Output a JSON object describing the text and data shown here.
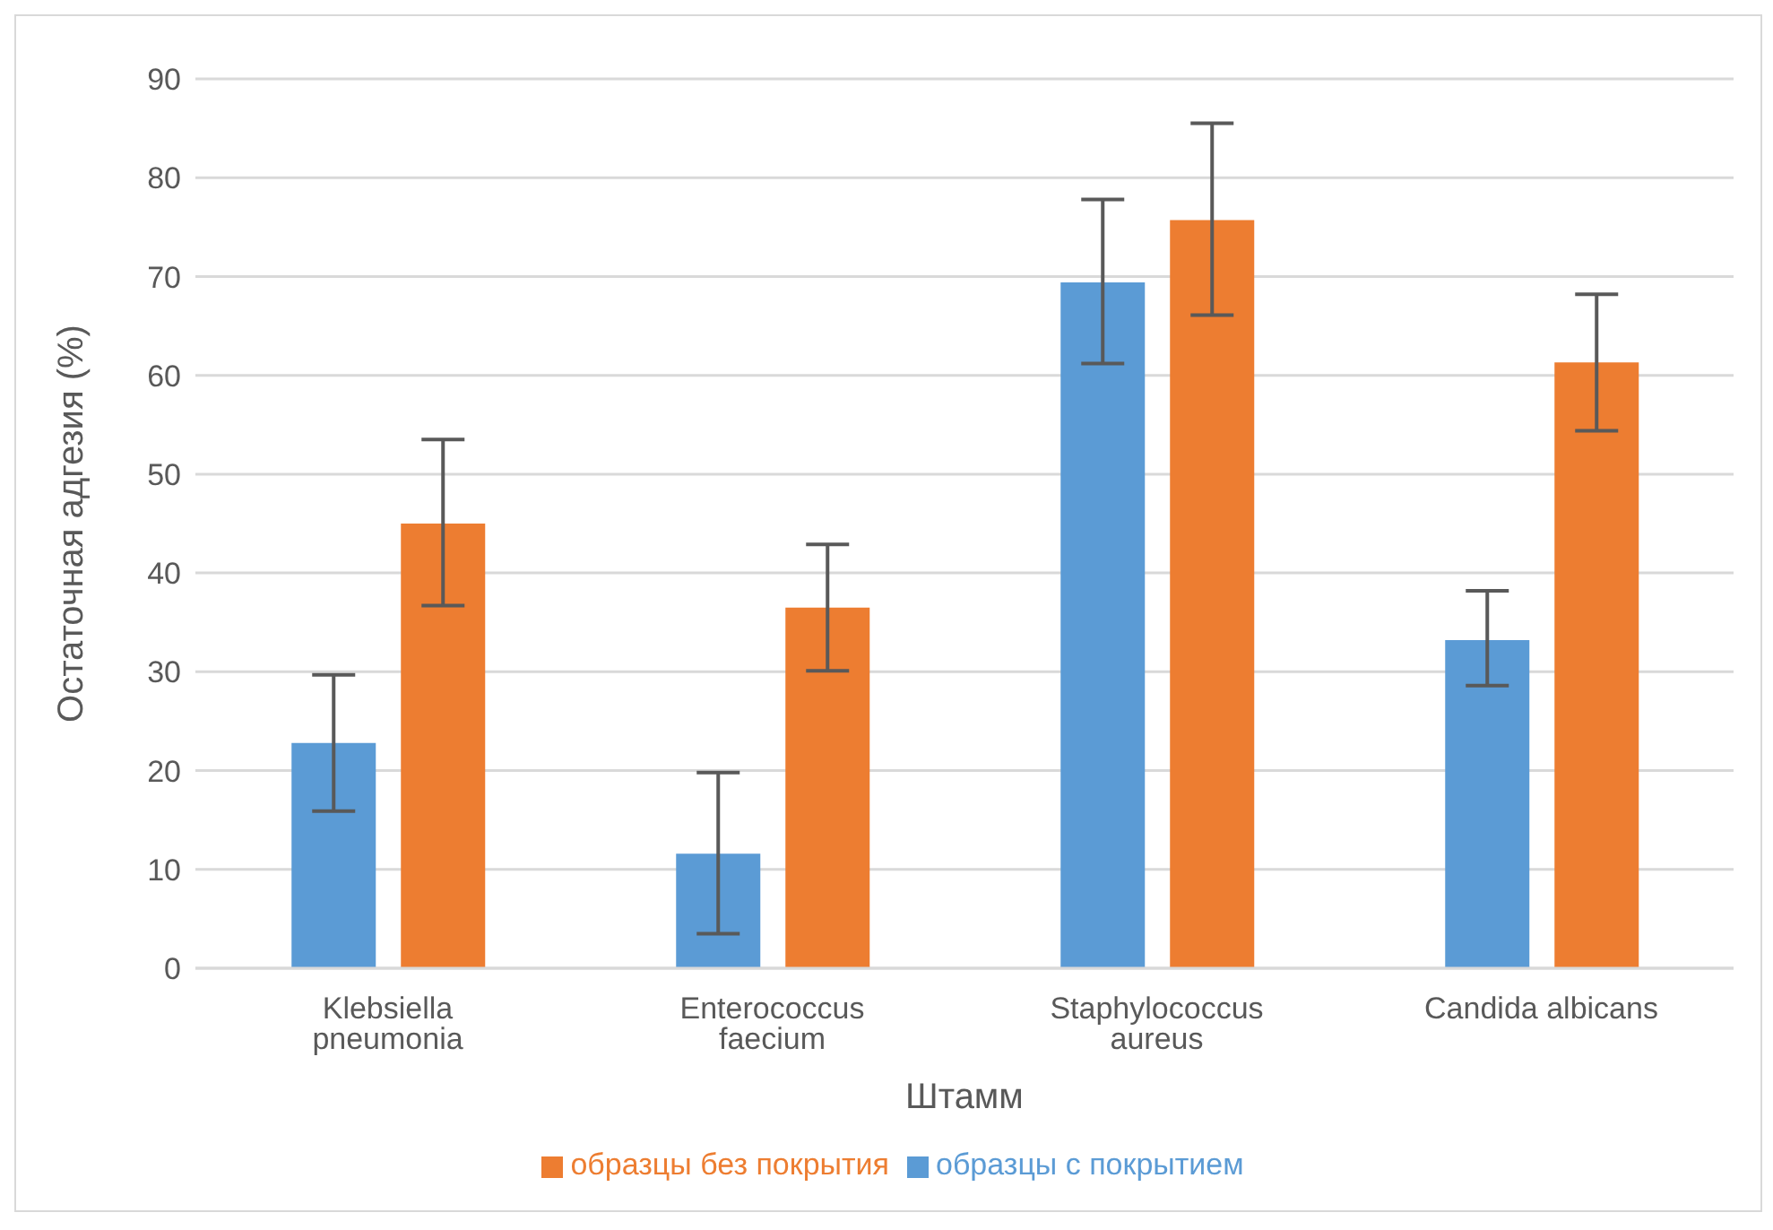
{
  "chart_data": {
    "type": "bar",
    "xlabel": "Штамм",
    "ylabel": "Остаточная адгезия (%)",
    "categories": [
      "Klebsiella pneumonia",
      "Enterococcus faecium",
      "Staphylococcus aureus",
      "Candida albicans"
    ],
    "series": [
      {
        "name": "образцы с покрытием",
        "color": "#5b9bd5",
        "values": [
          22.8,
          11.6,
          69.4,
          33.2
        ],
        "errors": [
          [
            15.9,
            29.7
          ],
          [
            3.5,
            19.8
          ],
          [
            61.2,
            77.8
          ],
          [
            28.6,
            38.2
          ]
        ]
      },
      {
        "name": "образцы без покрытия",
        "color": "#ed7d31",
        "values": [
          45.0,
          36.5,
          75.7,
          61.3
        ],
        "errors": [
          [
            36.7,
            53.5
          ],
          [
            30.1,
            42.9
          ],
          [
            66.1,
            85.5
          ],
          [
            54.4,
            68.2
          ]
        ]
      }
    ],
    "ylim": [
      0,
      90
    ],
    "yticks": [
      0,
      10,
      20,
      30,
      40,
      50,
      60,
      70,
      80,
      90
    ],
    "grid": "y",
    "legend": "bottom"
  }
}
